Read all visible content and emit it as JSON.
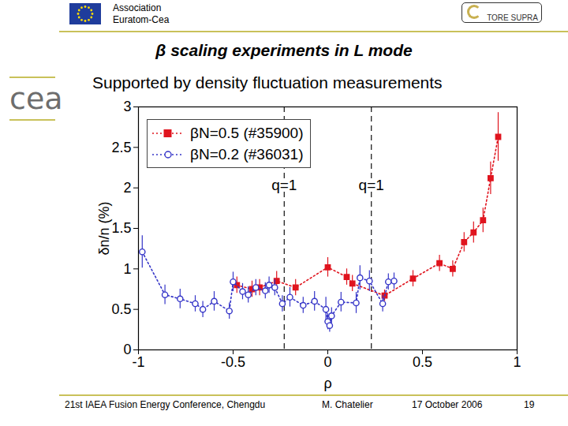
{
  "header": {
    "organization": [
      "Association",
      "Euratom-Cea"
    ],
    "logo": "TORE SUPRA",
    "side_logo": "cea"
  },
  "title": "β scaling experiments in L mode",
  "subtitle": "Supported  by density fluctuation measurements",
  "footer": {
    "conference": "21st IAEA Fusion Energy Conference, Chengdu",
    "author": "M. Chatelier",
    "date": "17 October 2006",
    "page": "19"
  },
  "chart_data": {
    "type": "scatter",
    "x_label": "ρ",
    "y_label": "δn/n (%)",
    "xlim": [
      -1,
      1
    ],
    "xticks": [
      -1,
      -0.5,
      0,
      0.5,
      1
    ],
    "ylim": [
      0,
      3
    ],
    "yticks": [
      0,
      0.5,
      1,
      1.5,
      2,
      2.5,
      3
    ],
    "legend": "top-left",
    "annotations": [
      {
        "x": -0.23,
        "label": "q=1"
      },
      {
        "x": 0.23,
        "label": "q=1"
      }
    ],
    "series": [
      {
        "name": "βN=0.5  (#35900)",
        "color": "#e0141e",
        "marker": "square",
        "line_style": "dotted",
        "x": [
          -0.48,
          -0.4,
          -0.36,
          -0.27,
          -0.17,
          0.0,
          0.1,
          0.13,
          0.3,
          0.45,
          0.59,
          0.66,
          0.72,
          0.77,
          0.82,
          0.86,
          0.9
        ],
        "values": [
          0.8,
          0.75,
          0.77,
          0.85,
          0.77,
          1.02,
          0.9,
          0.82,
          0.67,
          0.88,
          1.07,
          1.0,
          1.33,
          1.45,
          1.6,
          2.12,
          2.63
        ],
        "errors": [
          0.1,
          0.1,
          0.1,
          0.12,
          0.1,
          0.12,
          0.1,
          0.1,
          0.07,
          0.1,
          0.1,
          0.1,
          0.12,
          0.13,
          0.15,
          0.2,
          0.3
        ]
      },
      {
        "name": "βN=0.2  (#36031)",
        "color": "#3535c8",
        "marker": "open-circle",
        "line_style": "dotted",
        "x": [
          -0.98,
          -0.86,
          -0.78,
          -0.7,
          -0.66,
          -0.6,
          -0.52,
          -0.5,
          -0.45,
          -0.42,
          -0.38,
          -0.33,
          -0.31,
          -0.28,
          -0.24,
          -0.2,
          -0.13,
          -0.07,
          -0.01,
          0.0,
          0.01,
          0.02,
          0.07,
          0.15,
          0.17,
          0.22,
          0.29,
          0.32,
          0.35
        ],
        "values": [
          1.21,
          0.68,
          0.63,
          0.57,
          0.5,
          0.6,
          0.48,
          0.84,
          0.72,
          0.68,
          0.77,
          0.73,
          0.8,
          0.77,
          0.57,
          0.65,
          0.55,
          0.6,
          0.5,
          0.35,
          0.3,
          0.42,
          0.59,
          0.58,
          0.89,
          0.85,
          0.57,
          0.84,
          0.85
        ],
        "errors": [
          0.2,
          0.12,
          0.12,
          0.1,
          0.1,
          0.12,
          0.1,
          0.12,
          0.1,
          0.1,
          0.1,
          0.1,
          0.1,
          0.1,
          0.1,
          0.12,
          0.1,
          0.12,
          0.15,
          0.1,
          0.08,
          0.1,
          0.12,
          0.13,
          0.15,
          0.13,
          0.1,
          0.1,
          0.1
        ]
      }
    ]
  }
}
